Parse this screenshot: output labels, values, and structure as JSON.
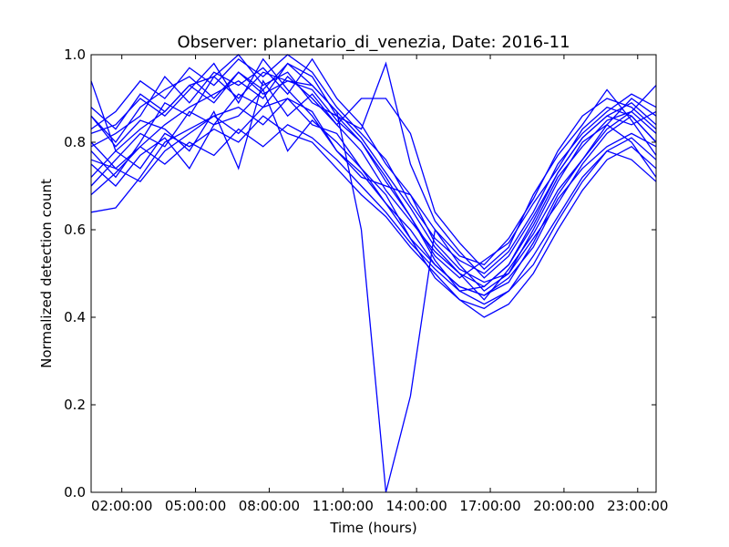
{
  "chart_data": {
    "type": "line",
    "title": "Observer: planetario_di_venezia, Date: 2016-11",
    "xlabel": "Time (hours)",
    "ylabel": "Normalized detection count",
    "xlim_hours": [
      0.75,
      23.75
    ],
    "ylim": [
      0,
      1
    ],
    "x_tick_values_hours": [
      2,
      5,
      8,
      11,
      14,
      17,
      20,
      23
    ],
    "x_tick_labels": [
      "02:00:00",
      "05:00:00",
      "08:00:00",
      "11:00:00",
      "14:00:00",
      "17:00:00",
      "20:00:00",
      "23:00:00"
    ],
    "y_ticks": [
      0.0,
      0.2,
      0.4,
      0.6,
      0.8,
      1.0
    ],
    "y_tick_labels": [
      "0.0",
      "0.2",
      "0.4",
      "0.6",
      "0.8",
      "1.0"
    ],
    "grid": false,
    "line_color": "#0000ff",
    "x_hours": [
      0.75,
      1.75,
      2.75,
      3.75,
      4.75,
      5.75,
      6.75,
      7.75,
      8.75,
      9.75,
      10.75,
      11.75,
      12.75,
      13.75,
      14.75,
      15.75,
      16.75,
      17.75,
      18.75,
      19.75,
      20.75,
      21.75,
      22.75,
      23.75
    ],
    "series": [
      {
        "values": [
          0.94,
          0.78,
          0.83,
          0.87,
          0.93,
          0.95,
          1.0,
          0.93,
          0.96,
          0.89,
          0.86,
          0.8,
          0.72,
          0.63,
          0.53,
          0.46,
          0.47,
          0.52,
          0.61,
          0.72,
          0.79,
          0.85,
          0.87,
          0.93
        ]
      },
      {
        "values": [
          0.64,
          0.65,
          0.72,
          0.8,
          0.83,
          0.86,
          0.82,
          0.88,
          0.9,
          0.84,
          0.82,
          0.74,
          0.66,
          0.6,
          0.52,
          0.47,
          0.45,
          0.48,
          0.57,
          0.68,
          0.76,
          0.84,
          0.8,
          0.72
        ]
      },
      {
        "values": [
          0.78,
          0.72,
          0.8,
          0.89,
          0.86,
          0.95,
          0.9,
          0.96,
          0.94,
          0.93,
          0.87,
          0.6,
          0.0,
          0.22,
          0.6,
          0.52,
          0.46,
          0.5,
          0.58,
          0.66,
          0.75,
          0.82,
          0.86,
          0.8
        ]
      },
      {
        "values": [
          0.8,
          0.74,
          0.79,
          0.84,
          0.88,
          0.91,
          0.94,
          0.9,
          0.98,
          0.95,
          0.86,
          0.83,
          0.98,
          0.75,
          0.62,
          0.55,
          0.49,
          0.54,
          0.63,
          0.73,
          0.81,
          0.86,
          0.89,
          0.84
        ]
      },
      {
        "values": [
          0.86,
          0.79,
          0.85,
          0.83,
          0.78,
          0.87,
          0.74,
          0.94,
          0.86,
          0.91,
          0.84,
          0.9,
          0.9,
          0.82,
          0.64,
          0.57,
          0.51,
          0.56,
          0.68,
          0.77,
          0.84,
          0.92,
          0.85,
          0.77
        ]
      },
      {
        "values": [
          0.75,
          0.7,
          0.77,
          0.81,
          0.74,
          0.84,
          0.86,
          0.92,
          0.78,
          0.85,
          0.8,
          0.74,
          0.68,
          0.58,
          0.49,
          0.44,
          0.42,
          0.46,
          0.52,
          0.62,
          0.71,
          0.78,
          0.81,
          0.76
        ]
      },
      {
        "values": [
          0.82,
          0.84,
          0.9,
          0.86,
          0.92,
          0.98,
          0.89,
          0.99,
          0.92,
          0.86,
          0.78,
          0.72,
          0.7,
          0.68,
          0.57,
          0.51,
          0.48,
          0.5,
          0.6,
          0.71,
          0.8,
          0.84,
          0.9,
          0.86
        ]
      },
      {
        "values": [
          0.7,
          0.76,
          0.82,
          0.79,
          0.87,
          0.84,
          0.91,
          0.88,
          0.95,
          0.9,
          0.84,
          0.78,
          0.69,
          0.62,
          0.55,
          0.5,
          0.44,
          0.51,
          0.59,
          0.69,
          0.76,
          0.83,
          0.87,
          0.82
        ]
      },
      {
        "values": [
          0.86,
          0.8,
          0.88,
          0.92,
          0.95,
          0.9,
          0.96,
          0.91,
          0.94,
          0.92,
          0.85,
          0.8,
          0.71,
          0.63,
          0.54,
          0.49,
          0.53,
          0.57,
          0.66,
          0.74,
          0.83,
          0.88,
          0.86,
          0.8
        ]
      },
      {
        "values": [
          0.76,
          0.74,
          0.71,
          0.78,
          0.82,
          0.86,
          0.88,
          0.84,
          0.9,
          0.87,
          0.78,
          0.73,
          0.66,
          0.58,
          0.52,
          0.47,
          0.45,
          0.49,
          0.56,
          0.67,
          0.74,
          0.79,
          0.82,
          0.79
        ]
      },
      {
        "values": [
          0.83,
          0.87,
          0.94,
          0.9,
          0.97,
          0.93,
          0.99,
          0.95,
          1.0,
          0.96,
          0.88,
          0.82,
          0.76,
          0.66,
          0.58,
          0.53,
          0.5,
          0.55,
          0.64,
          0.75,
          0.82,
          0.87,
          0.91,
          0.88
        ]
      },
      {
        "values": [
          0.72,
          0.78,
          0.74,
          0.82,
          0.79,
          0.83,
          0.8,
          0.86,
          0.82,
          0.8,
          0.74,
          0.68,
          0.63,
          0.56,
          0.5,
          0.44,
          0.4,
          0.43,
          0.5,
          0.6,
          0.69,
          0.76,
          0.79,
          0.74
        ]
      },
      {
        "values": [
          0.79,
          0.82,
          0.86,
          0.95,
          0.89,
          0.96,
          0.93,
          0.97,
          0.91,
          0.99,
          0.9,
          0.84,
          0.75,
          0.68,
          0.6,
          0.54,
          0.52,
          0.58,
          0.67,
          0.78,
          0.86,
          0.9,
          0.88,
          0.83
        ]
      },
      {
        "values": [
          0.68,
          0.73,
          0.79,
          0.75,
          0.8,
          0.77,
          0.83,
          0.79,
          0.84,
          0.81,
          0.76,
          0.7,
          0.64,
          0.57,
          0.51,
          0.46,
          0.43,
          0.46,
          0.54,
          0.63,
          0.72,
          0.78,
          0.76,
          0.71
        ]
      },
      {
        "values": [
          0.88,
          0.83,
          0.91,
          0.87,
          0.93,
          0.89,
          0.96,
          0.92,
          0.98,
          0.93,
          0.87,
          0.81,
          0.73,
          0.65,
          0.56,
          0.5,
          0.47,
          0.52,
          0.62,
          0.73,
          0.81,
          0.86,
          0.84,
          0.87
        ]
      }
    ]
  }
}
